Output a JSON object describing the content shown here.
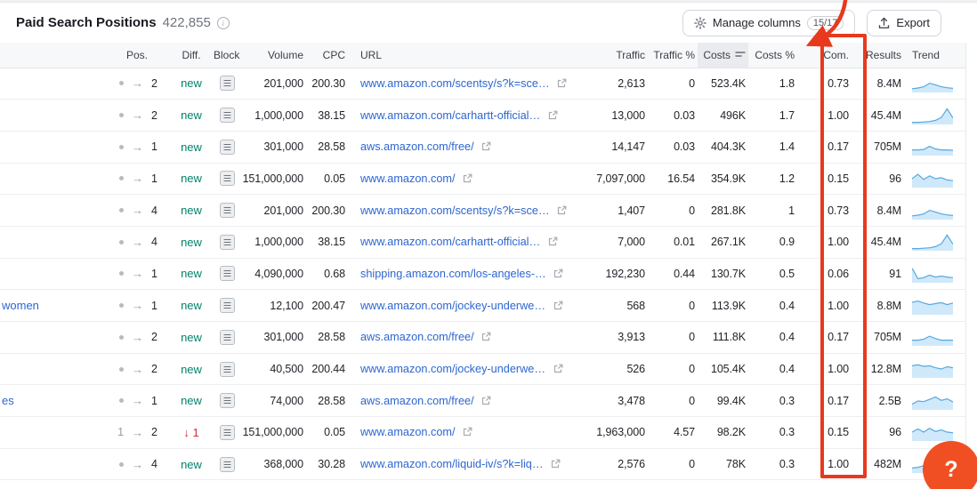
{
  "header": {
    "title": "Paid Search Positions",
    "count": "422,855",
    "manage_columns_label": "Manage columns",
    "manage_columns_badge": "15/17",
    "export_label": "Export"
  },
  "table": {
    "pos_arrow": "→",
    "columns": {
      "pos": "Pos.",
      "diff": "Diff.",
      "block": "Block",
      "volume": "Volume",
      "cpc": "CPC",
      "url": "URL",
      "traffic": "Traffic",
      "traffic_pct": "Traffic %",
      "costs": "Costs",
      "costs_pct": "Costs %",
      "com": "Com.",
      "results": "Results",
      "trend": "Trend"
    },
    "rows": [
      {
        "keyword": "",
        "pos_from": "dot",
        "pos_to": "2",
        "diff": "new",
        "diff_type": "new",
        "volume": "201,000",
        "cpc": "200.30",
        "url": "www.amazon.com/scentsy/s?k=sce…",
        "traffic": "2,613",
        "traffic_pct": "0",
        "costs": "523.4K",
        "costs_pct": "1.8",
        "com": "0.73",
        "results": "8.4M",
        "trend": [
          0.18,
          0.22,
          0.3,
          0.52,
          0.42,
          0.3,
          0.24,
          0.2
        ]
      },
      {
        "keyword": "",
        "pos_from": "dot",
        "pos_to": "2",
        "diff": "new",
        "diff_type": "new",
        "volume": "1,000,000",
        "cpc": "38.15",
        "url": "www.amazon.com/carhartt-official…",
        "traffic": "13,000",
        "traffic_pct": "0.03",
        "costs": "496K",
        "costs_pct": "1.7",
        "com": "1.00",
        "results": "45.4M",
        "trend": [
          0.08,
          0.08,
          0.1,
          0.13,
          0.2,
          0.38,
          0.92,
          0.35
        ]
      },
      {
        "keyword": "",
        "pos_from": "dot",
        "pos_to": "1",
        "diff": "new",
        "diff_type": "new",
        "volume": "301,000",
        "cpc": "28.58",
        "url": "aws.amazon.com/free/",
        "traffic": "14,147",
        "traffic_pct": "0.03",
        "costs": "404.3K",
        "costs_pct": "1.4",
        "com": "0.17",
        "results": "705M",
        "trend": [
          0.3,
          0.3,
          0.33,
          0.52,
          0.36,
          0.3,
          0.3,
          0.28
        ]
      },
      {
        "keyword": "",
        "pos_from": "dot",
        "pos_to": "1",
        "diff": "new",
        "diff_type": "new",
        "volume": "151,000,000",
        "cpc": "0.05",
        "url": "www.amazon.com/",
        "traffic": "7,097,000",
        "traffic_pct": "16.54",
        "costs": "354.9K",
        "costs_pct": "1.2",
        "com": "0.15",
        "results": "96",
        "trend": [
          0.5,
          0.78,
          0.45,
          0.68,
          0.5,
          0.56,
          0.42,
          0.38
        ]
      },
      {
        "keyword": "",
        "pos_from": "dot",
        "pos_to": "4",
        "diff": "new",
        "diff_type": "new",
        "volume": "201,000",
        "cpc": "200.30",
        "url": "www.amazon.com/scentsy/s?k=sce…",
        "traffic": "1,407",
        "traffic_pct": "0",
        "costs": "281.8K",
        "costs_pct": "1",
        "com": "0.73",
        "results": "8.4M",
        "trend": [
          0.18,
          0.22,
          0.3,
          0.52,
          0.42,
          0.3,
          0.24,
          0.2
        ]
      },
      {
        "keyword": "",
        "pos_from": "dot",
        "pos_to": "4",
        "diff": "new",
        "diff_type": "new",
        "volume": "1,000,000",
        "cpc": "38.15",
        "url": "www.amazon.com/carhartt-official…",
        "traffic": "7,000",
        "traffic_pct": "0.01",
        "costs": "267.1K",
        "costs_pct": "0.9",
        "com": "1.00",
        "results": "45.4M",
        "trend": [
          0.08,
          0.08,
          0.1,
          0.13,
          0.2,
          0.38,
          0.92,
          0.35
        ]
      },
      {
        "keyword": "",
        "pos_from": "dot",
        "pos_to": "1",
        "diff": "new",
        "diff_type": "new",
        "volume": "4,090,000",
        "cpc": "0.68",
        "url": "shipping.amazon.com/los-angeles-…",
        "traffic": "192,230",
        "traffic_pct": "0.44",
        "costs": "130.7K",
        "costs_pct": "0.5",
        "com": "0.06",
        "results": "91",
        "trend": [
          0.85,
          0.2,
          0.26,
          0.42,
          0.3,
          0.36,
          0.3,
          0.26
        ]
      },
      {
        "keyword": "women",
        "pos_from": "dot",
        "pos_to": "1",
        "diff": "new",
        "diff_type": "new",
        "volume": "12,100",
        "cpc": "200.47",
        "url": "www.amazon.com/jockey-underwe…",
        "traffic": "568",
        "traffic_pct": "0",
        "costs": "113.9K",
        "costs_pct": "0.4",
        "com": "1.00",
        "results": "8.8M",
        "trend": [
          0.72,
          0.8,
          0.68,
          0.58,
          0.64,
          0.7,
          0.58,
          0.68
        ]
      },
      {
        "keyword": "",
        "pos_from": "dot",
        "pos_to": "2",
        "diff": "new",
        "diff_type": "new",
        "volume": "301,000",
        "cpc": "28.58",
        "url": "aws.amazon.com/free/",
        "traffic": "3,913",
        "traffic_pct": "0",
        "costs": "111.8K",
        "costs_pct": "0.4",
        "com": "0.17",
        "results": "705M",
        "trend": [
          0.3,
          0.3,
          0.36,
          0.55,
          0.4,
          0.3,
          0.3,
          0.3
        ]
      },
      {
        "keyword": "",
        "pos_from": "dot",
        "pos_to": "2",
        "diff": "new",
        "diff_type": "new",
        "volume": "40,500",
        "cpc": "200.44",
        "url": "www.amazon.com/jockey-underwe…",
        "traffic": "526",
        "traffic_pct": "0",
        "costs": "105.4K",
        "costs_pct": "0.4",
        "com": "1.00",
        "results": "12.8M",
        "trend": [
          0.7,
          0.76,
          0.66,
          0.7,
          0.58,
          0.5,
          0.64,
          0.58
        ]
      },
      {
        "keyword": "es",
        "pos_from": "dot",
        "pos_to": "1",
        "diff": "new",
        "diff_type": "new",
        "volume": "74,000",
        "cpc": "28.58",
        "url": "aws.amazon.com/free/",
        "traffic": "3,478",
        "traffic_pct": "0",
        "costs": "99.4K",
        "costs_pct": "0.3",
        "com": "0.17",
        "results": "2.5B",
        "trend": [
          0.3,
          0.5,
          0.46,
          0.6,
          0.75,
          0.54,
          0.64,
          0.44
        ]
      },
      {
        "keyword": "",
        "pos_from": "1",
        "pos_to": "2",
        "diff": "↓ 1",
        "diff_type": "down",
        "volume": "151,000,000",
        "cpc": "0.05",
        "url": "www.amazon.com/",
        "traffic": "1,963,000",
        "traffic_pct": "4.57",
        "costs": "98.2K",
        "costs_pct": "0.3",
        "com": "0.15",
        "results": "96",
        "trend": [
          0.5,
          0.7,
          0.5,
          0.74,
          0.54,
          0.64,
          0.5,
          0.46
        ]
      },
      {
        "keyword": "",
        "pos_from": "dot",
        "pos_to": "4",
        "diff": "new",
        "diff_type": "new",
        "volume": "368,000",
        "cpc": "30.28",
        "url": "www.amazon.com/liquid-iv/s?k=liq…",
        "traffic": "2,576",
        "traffic_pct": "0",
        "costs": "78K",
        "costs_pct": "0.3",
        "com": "1.00",
        "results": "482M",
        "trend": [
          0.25,
          0.3,
          0.4,
          0.55,
          0.8,
          0.45,
          0.5,
          0.55
        ]
      }
    ]
  },
  "help": {
    "label": "?"
  },
  "colors": {
    "link": "#2e66d0",
    "green": "#00836b",
    "red": "#d12b36",
    "annotation": "#e8391d",
    "help": "#f04f23",
    "spark-line": "#57a8df",
    "spark-fill": "#cfe9fa"
  }
}
